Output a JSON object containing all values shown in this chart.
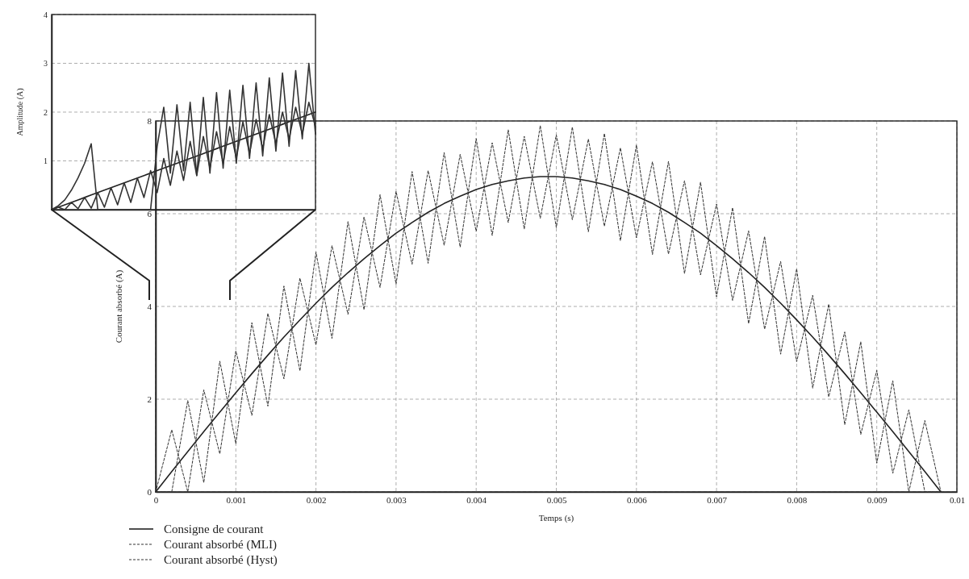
{
  "chart_data": [
    {
      "type": "line",
      "xlabel": "Temps (s)",
      "ylabel": "Courant absorbé (A)",
      "xlim": [
        0,
        0.01
      ],
      "ylim": [
        0,
        8
      ],
      "xticks": [
        0,
        0.001,
        0.002,
        0.003,
        0.004,
        0.005,
        0.006,
        0.007,
        0.008,
        0.009,
        0.01
      ],
      "yticks": [
        0,
        2,
        4,
        6,
        8
      ],
      "grid": true,
      "legend": "bottom left",
      "x": [
        0,
        0.0002,
        0.0004,
        0.0006,
        0.0008,
        0.001,
        0.0012,
        0.0014,
        0.0016,
        0.0018,
        0.002,
        0.0022,
        0.0024,
        0.0026,
        0.0028,
        0.003,
        0.0032,
        0.0034,
        0.0036,
        0.0038,
        0.004,
        0.0042,
        0.0044,
        0.0046,
        0.0048,
        0.005,
        0.0052,
        0.0054,
        0.0056,
        0.0058,
        0.006,
        0.0062,
        0.0064,
        0.0066,
        0.0068,
        0.007,
        0.0072,
        0.0074,
        0.0076,
        0.0078,
        0.008,
        0.0082,
        0.0084,
        0.0086,
        0.0088,
        0.009,
        0.0092,
        0.0094,
        0.0096,
        0.0098
      ],
      "series": [
        {
          "name": "Consigne de courant",
          "color": "#222222",
          "line_style": "solid",
          "values": [
            0,
            0.44,
            0.87,
            1.3,
            1.72,
            2.14,
            2.55,
            2.95,
            3.34,
            3.71,
            4.07,
            4.41,
            4.73,
            5.03,
            5.31,
            5.58,
            5.81,
            6.03,
            6.22,
            6.38,
            6.52,
            6.63,
            6.71,
            6.77,
            6.8,
            6.8,
            6.77,
            6.71,
            6.63,
            6.52,
            6.38,
            6.22,
            6.03,
            5.81,
            5.58,
            5.31,
            5.03,
            4.73,
            4.41,
            4.07,
            3.71,
            3.34,
            2.95,
            2.55,
            2.14,
            1.72,
            1.3,
            0.87,
            0.44,
            0
          ]
        },
        {
          "name": "Courant absorbé (MLI)",
          "color": "#333333",
          "line_style": "dashed",
          "values": [
            0,
            0,
            1.97,
            0.2,
            2.82,
            1.04,
            3.65,
            1.85,
            4.44,
            2.61,
            5.17,
            3.31,
            5.83,
            3.93,
            6.41,
            4.48,
            6.91,
            4.93,
            7.32,
            5.28,
            7.62,
            5.53,
            7.81,
            5.67,
            7.9,
            5.7,
            7.87,
            5.61,
            7.73,
            5.42,
            7.48,
            5.12,
            7.13,
            4.71,
            6.68,
            4.21,
            6.13,
            3.63,
            5.51,
            2.97,
            4.81,
            2.24,
            4.05,
            1.45,
            3.24,
            0.62,
            2.4,
            0,
            1.54,
            0
          ]
        },
        {
          "name": "Courant absorbé (Hyst)",
          "color": "#333333",
          "line_style": "dashed",
          "values": [
            0,
            1.34,
            0,
            2.2,
            0.82,
            3.04,
            1.65,
            3.85,
            2.44,
            4.61,
            3.17,
            5.31,
            3.83,
            5.93,
            4.41,
            6.48,
            4.91,
            6.93,
            5.32,
            7.28,
            5.62,
            7.53,
            5.81,
            7.67,
            5.9,
            7.7,
            5.87,
            7.61,
            5.73,
            7.42,
            5.48,
            7.12,
            5.13,
            6.71,
            4.68,
            6.21,
            4.13,
            5.63,
            3.51,
            4.97,
            2.81,
            4.24,
            2.05,
            3.45,
            1.24,
            2.62,
            0.4,
            1.77,
            0,
            0
          ]
        }
      ]
    },
    {
      "type": "line",
      "ylabel": "Amplitude (A)",
      "ylim": [
        0,
        4
      ],
      "yticks": [
        1,
        2,
        3,
        4
      ],
      "grid": "y",
      "tick_labels": "y",
      "categories": [
        null,
        null,
        null,
        null,
        null,
        null,
        null,
        null,
        null,
        null,
        null,
        null,
        null,
        null,
        null,
        null,
        null,
        null,
        null,
        null,
        null,
        null,
        null,
        null,
        null,
        null,
        null,
        null,
        null,
        null,
        null,
        null,
        null,
        null,
        null,
        null,
        null,
        null,
        null,
        null,
        null
      ],
      "series": [
        {
          "color": "#222222",
          "line_style": "solid",
          "values": [
            0,
            0.05,
            0.1,
            0.15,
            0.2,
            0.25,
            0.3,
            0.35,
            0.4,
            0.45,
            0.5,
            0.55,
            0.6,
            0.65,
            0.7,
            0.75,
            0.8,
            0.85,
            0.9,
            0.95,
            1.0,
            1.05,
            1.1,
            1.15,
            1.2,
            1.25,
            1.3,
            1.35,
            1.4,
            1.45,
            1.5,
            1.55,
            1.6,
            1.65,
            1.7,
            1.75,
            1.8,
            1.85,
            1.9,
            1.95,
            2.0
          ]
        },
        {
          "color": "#333333",
          "line_style": "solid",
          "values": [
            0,
            0.05,
            0,
            0.15,
            0.02,
            0.25,
            0.03,
            0.35,
            0.05,
            0.45,
            0.1,
            0.55,
            0.15,
            0.65,
            0.25,
            0.8,
            0.35,
            1.05,
            0.5,
            1.2,
            0.6,
            1.4,
            0.7,
            1.5,
            0.85,
            1.6,
            0.95,
            1.7,
            1.05,
            1.8,
            1.15,
            1.85,
            1.25,
            1.95,
            1.35,
            2.0,
            1.45,
            2.1,
            1.55,
            2.2,
            1.7
          ]
        },
        {
          "color": "#333333",
          "line_style": "solid",
          "values": [
            0,
            0.08,
            0.2,
            0.4,
            0.65,
            0.95,
            1.35,
            0,
            0,
            0,
            0,
            0,
            0,
            0,
            0,
            0,
            1.3,
            2.1,
            0.75,
            2.15,
            0.8,
            2.2,
            0.7,
            2.3,
            0.75,
            2.4,
            0.85,
            2.45,
            0.95,
            2.55,
            1.05,
            2.6,
            1.1,
            2.7,
            1.2,
            2.8,
            1.3,
            2.85,
            1.45,
            3.0,
            1.55
          ]
        }
      ]
    }
  ]
}
